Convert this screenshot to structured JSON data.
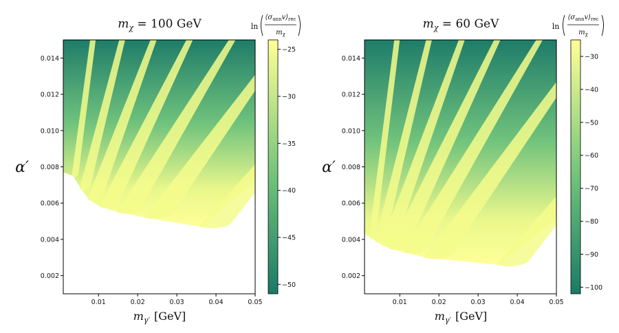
{
  "chart_data": [
    {
      "type": "heatmap",
      "title_var": "m",
      "title_sub": "χ",
      "title_value": " = 100 GeV",
      "xlabel_var": "m",
      "xlabel_sub": "γ′",
      "xlabel_unit": "[GeV]",
      "ylabel": "α′",
      "xlim": [
        0.001,
        0.05
      ],
      "ylim": [
        0.001,
        0.015
      ],
      "xticks": [
        0.01,
        0.02,
        0.03,
        0.04,
        0.05
      ],
      "xtick_labels": [
        "0.01",
        "0.02",
        "0.03",
        "0.04",
        "0.05"
      ],
      "yticks": [
        0.002,
        0.004,
        0.006,
        0.008,
        0.01,
        0.012,
        0.014
      ],
      "ytick_labels": [
        "0.002",
        "0.004",
        "0.006",
        "0.008",
        "0.010",
        "0.012",
        "0.014"
      ],
      "colorbar": {
        "label_prefix": "ln",
        "label_num": "⟨σ",
        "label_num_sub": "ann",
        "label_num_tail": "v⟩",
        "label_num_sub2": "rec",
        "label_den": "m",
        "label_den_sub": "χ",
        "range": [
          -51,
          -24
        ],
        "ticks": [
          -25,
          -30,
          -35,
          -40,
          -45,
          -50
        ],
        "tick_labels": [
          "−25",
          "−30",
          "−35",
          "−40",
          "−45",
          "−50"
        ]
      },
      "lobes": [
        {
          "x0": 0.0035,
          "y0": 0.0075
        },
        {
          "x0": 0.0055,
          "y0": 0.0068
        },
        {
          "x0": 0.0075,
          "y0": 0.0062
        },
        {
          "x0": 0.0105,
          "y0": 0.0058
        },
        {
          "x0": 0.015,
          "y0": 0.0055
        },
        {
          "x0": 0.022,
          "y0": 0.0052
        },
        {
          "x0": 0.036,
          "y0": 0.0047
        }
      ]
    },
    {
      "type": "heatmap",
      "title_var": "m",
      "title_sub": "χ",
      "title_value": " = 60 GeV",
      "xlabel_var": "m",
      "xlabel_sub": "γ′",
      "xlabel_unit": "[GeV]",
      "ylabel": "α′",
      "xlim": [
        0.001,
        0.05
      ],
      "ylim": [
        0.001,
        0.015
      ],
      "xticks": [
        0.01,
        0.02,
        0.03,
        0.04,
        0.05
      ],
      "xtick_labels": [
        "0.01",
        "0.02",
        "0.03",
        "0.04",
        "0.05"
      ],
      "yticks": [
        0.002,
        0.004,
        0.006,
        0.008,
        0.01,
        0.012,
        0.014
      ],
      "ytick_labels": [
        "0.002",
        "0.004",
        "0.006",
        "0.008",
        "0.010",
        "0.012",
        "0.014"
      ],
      "colorbar": {
        "label_prefix": "ln",
        "label_num": "⟨σ",
        "label_num_sub": "ann",
        "label_num_tail": "v⟩",
        "label_num_sub2": "rec",
        "label_den": "m",
        "label_den_sub": "χ",
        "range": [
          -102,
          -25
        ],
        "ticks": [
          -30,
          -40,
          -50,
          -60,
          -70,
          -80,
          -90,
          -100
        ],
        "tick_labels": [
          "−30",
          "−40",
          "−50",
          "−60",
          "−70",
          "−80",
          "−90",
          "−100"
        ]
      },
      "lobes": [
        {
          "x0": 0.0025,
          "y0": 0.0041
        },
        {
          "x0": 0.004,
          "y0": 0.0039
        },
        {
          "x0": 0.0055,
          "y0": 0.0037
        },
        {
          "x0": 0.0075,
          "y0": 0.0035
        },
        {
          "x0": 0.011,
          "y0": 0.0033
        },
        {
          "x0": 0.0165,
          "y0": 0.003
        },
        {
          "x0": 0.035,
          "y0": 0.0026
        }
      ]
    }
  ],
  "colors": {
    "cmap_low": "#1a7a66",
    "cmap_mid": "#6ec27a",
    "cmap_high": "#ffff96",
    "axis": "#000000"
  }
}
